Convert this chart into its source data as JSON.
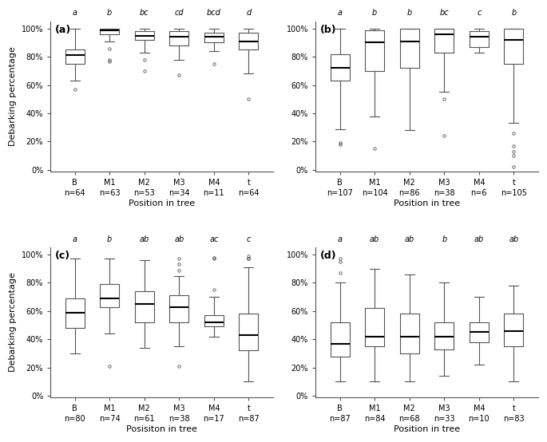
{
  "panels": [
    {
      "label": "(a)",
      "ylabel": "Debarking percentage",
      "xlabel": "Position in tree",
      "sig_labels": [
        "a",
        "b",
        "bc",
        "cd",
        "bcd",
        "d"
      ],
      "n_labels": [
        "n=64",
        "n=63",
        "n=53",
        "n=34",
        "n=11",
        "n=64"
      ],
      "categories": [
        "B",
        "M1",
        "M2",
        "M3",
        "M4",
        "t"
      ],
      "boxes": [
        {
          "q1": 0.75,
          "median": 0.81,
          "q3": 0.85,
          "whislo": 0.63,
          "whishi": 1.0,
          "fliers": [
            0.57
          ]
        },
        {
          "q1": 0.96,
          "median": 0.99,
          "q3": 1.0,
          "whislo": 0.91,
          "whishi": 1.0,
          "fliers": [
            0.86,
            0.78,
            0.77
          ]
        },
        {
          "q1": 0.92,
          "median": 0.95,
          "q3": 0.98,
          "whislo": 0.83,
          "whishi": 1.0,
          "fliers": [
            0.7,
            0.78
          ]
        },
        {
          "q1": 0.88,
          "median": 0.94,
          "q3": 0.98,
          "whislo": 0.78,
          "whishi": 1.0,
          "fliers": [
            0.67
          ]
        },
        {
          "q1": 0.9,
          "median": 0.94,
          "q3": 0.97,
          "whislo": 0.84,
          "whishi": 1.0,
          "fliers": [
            0.75
          ]
        },
        {
          "q1": 0.85,
          "median": 0.91,
          "q3": 0.97,
          "whislo": 0.68,
          "whishi": 1.0,
          "fliers": [
            0.5
          ]
        }
      ]
    },
    {
      "label": "(b)",
      "ylabel": "",
      "xlabel": "Position in tree",
      "sig_labels": [
        "a",
        "b",
        "b",
        "bc",
        "c",
        "b"
      ],
      "n_labels": [
        "n=107",
        "n=104",
        "n=86",
        "n=38",
        "n=6",
        "n=105"
      ],
      "categories": [
        "B",
        "M1",
        "M2",
        "M3",
        "M4",
        "t"
      ],
      "boxes": [
        {
          "q1": 0.63,
          "median": 0.72,
          "q3": 0.82,
          "whislo": 0.29,
          "whishi": 1.0,
          "fliers": [
            0.18,
            0.19
          ]
        },
        {
          "q1": 0.7,
          "median": 0.9,
          "q3": 0.99,
          "whislo": 0.38,
          "whishi": 1.0,
          "fliers": [
            0.15
          ]
        },
        {
          "q1": 0.72,
          "median": 0.91,
          "q3": 1.0,
          "whislo": 0.28,
          "whishi": 1.0,
          "fliers": []
        },
        {
          "q1": 0.83,
          "median": 0.96,
          "q3": 1.0,
          "whislo": 0.55,
          "whishi": 1.0,
          "fliers": [
            0.5,
            0.24
          ]
        },
        {
          "q1": 0.87,
          "median": 0.94,
          "q3": 0.98,
          "whislo": 0.83,
          "whishi": 1.0,
          "fliers": []
        },
        {
          "q1": 0.75,
          "median": 0.92,
          "q3": 1.0,
          "whislo": 0.33,
          "whishi": 1.0,
          "fliers": [
            0.26,
            0.17,
            0.13,
            0.1,
            0.02
          ]
        }
      ]
    },
    {
      "label": "(c)",
      "ylabel": "Debarking percentage",
      "xlabel": "Posisiton in tree",
      "sig_labels": [
        "a",
        "b",
        "ab",
        "ab",
        "ac",
        "c"
      ],
      "n_labels": [
        "n=80",
        "n=74",
        "n=61",
        "n=38",
        "n=17",
        "n=87"
      ],
      "categories": [
        "B",
        "M1",
        "M2",
        "M3",
        "M4",
        "t"
      ],
      "boxes": [
        {
          "q1": 0.48,
          "median": 0.59,
          "q3": 0.69,
          "whislo": 0.3,
          "whishi": 0.97,
          "fliers": []
        },
        {
          "q1": 0.63,
          "median": 0.69,
          "q3": 0.79,
          "whislo": 0.44,
          "whishi": 0.97,
          "fliers": [
            0.21
          ]
        },
        {
          "q1": 0.52,
          "median": 0.65,
          "q3": 0.74,
          "whislo": 0.34,
          "whishi": 0.96,
          "fliers": []
        },
        {
          "q1": 0.52,
          "median": 0.63,
          "q3": 0.71,
          "whislo": 0.35,
          "whishi": 0.85,
          "fliers": [
            0.21,
            0.89,
            0.93,
            0.97
          ]
        },
        {
          "q1": 0.49,
          "median": 0.52,
          "q3": 0.57,
          "whislo": 0.42,
          "whishi": 0.7,
          "fliers": [
            0.75,
            0.97,
            0.98
          ]
        },
        {
          "q1": 0.32,
          "median": 0.43,
          "q3": 0.58,
          "whislo": 0.1,
          "whishi": 0.91,
          "fliers": [
            0.97,
            0.97,
            0.99
          ]
        }
      ]
    },
    {
      "label": "(d)",
      "ylabel": "",
      "xlabel": "Position in tree",
      "sig_labels": [
        "a",
        "ab",
        "ab",
        "b",
        "ab",
        "ab"
      ],
      "n_labels": [
        "n=87",
        "n=84",
        "n=68",
        "n=33",
        "n=10",
        "n=83"
      ],
      "categories": [
        "B",
        "M1",
        "M2",
        "M3",
        "M4",
        "t"
      ],
      "boxes": [
        {
          "q1": 0.28,
          "median": 0.37,
          "q3": 0.52,
          "whislo": 0.1,
          "whishi": 0.8,
          "fliers": [
            0.97,
            0.95,
            0.87
          ]
        },
        {
          "q1": 0.35,
          "median": 0.42,
          "q3": 0.62,
          "whislo": 0.1,
          "whishi": 0.9,
          "fliers": []
        },
        {
          "q1": 0.3,
          "median": 0.42,
          "q3": 0.58,
          "whislo": 0.1,
          "whishi": 0.86,
          "fliers": []
        },
        {
          "q1": 0.33,
          "median": 0.42,
          "q3": 0.52,
          "whislo": 0.14,
          "whishi": 0.8,
          "fliers": []
        },
        {
          "q1": 0.38,
          "median": 0.45,
          "q3": 0.52,
          "whislo": 0.22,
          "whishi": 0.7,
          "fliers": []
        },
        {
          "q1": 0.35,
          "median": 0.46,
          "q3": 0.58,
          "whislo": 0.1,
          "whishi": 0.78,
          "fliers": []
        }
      ]
    }
  ]
}
